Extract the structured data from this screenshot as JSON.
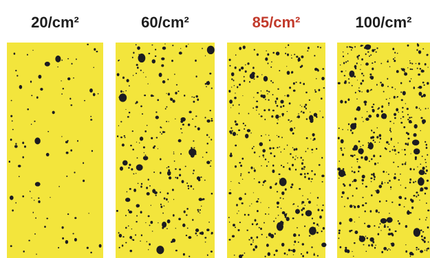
{
  "panels": [
    {
      "label": "20/cm²",
      "color": "#1e1e1e"
    },
    {
      "label": "60/cm²",
      "color": "#1e1e1e"
    },
    {
      "label": "85/cm²",
      "color": "#c23a2b"
    },
    {
      "label": "100/cm²",
      "color": "#1e1e1e"
    }
  ]
}
